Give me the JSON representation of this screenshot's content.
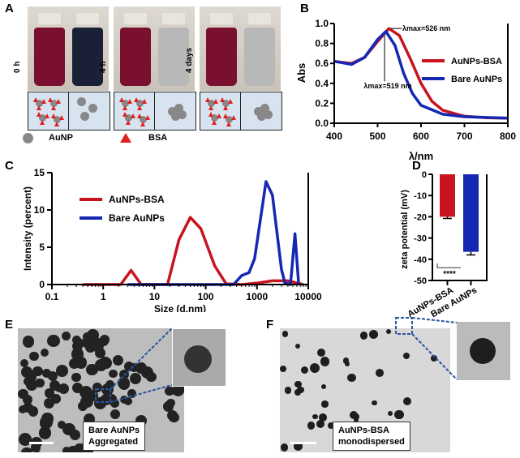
{
  "panels": {
    "a": "A",
    "b": "B",
    "c": "C",
    "d": "D",
    "e": "E",
    "f": "F"
  },
  "panel_a": {
    "times": [
      "0 h",
      "4 h",
      "4 days"
    ],
    "legend": {
      "aunp": "AuNP",
      "bsa": "BSA"
    },
    "colors": {
      "red_solution": "#7a1030",
      "blue_solution": "#1a2035",
      "grey_solution": "#b8b8b8",
      "schematic_bg": "#d7e3ef",
      "bsa": "#e02020",
      "aunp": "#888888"
    }
  },
  "panel_e": {
    "label_line1": "Bare AuNPs",
    "label_line2": "Aggregated"
  },
  "panel_f": {
    "label_line1": "AuNPs-BSA",
    "label_line2": "monodispersed"
  },
  "chart_data": [
    {
      "type": "line",
      "xlabel": "λ/nm",
      "ylabel": "Abs",
      "xlim": [
        400,
        800
      ],
      "ylim": [
        0,
        1.0
      ],
      "xticks": [
        400,
        500,
        600,
        700,
        800
      ],
      "yticks": [
        0.0,
        0.2,
        0.4,
        0.6,
        0.8,
        1.0
      ],
      "legend_position": "right",
      "annotations": [
        "λmax=526 nm",
        "λmax=519 nm"
      ],
      "series": [
        {
          "name": "AuNPs-BSA",
          "color": "#c8141e",
          "points": [
            [
              400,
              0.62
            ],
            [
              440,
              0.6
            ],
            [
              470,
              0.66
            ],
            [
              500,
              0.82
            ],
            [
              526,
              0.95
            ],
            [
              550,
              0.88
            ],
            [
              575,
              0.65
            ],
            [
              600,
              0.4
            ],
            [
              625,
              0.22
            ],
            [
              650,
              0.13
            ],
            [
              700,
              0.07
            ],
            [
              750,
              0.055
            ],
            [
              800,
              0.05
            ]
          ]
        },
        {
          "name": "Bare AuNPs",
          "color": "#1428b4",
          "points": [
            [
              400,
              0.62
            ],
            [
              440,
              0.59
            ],
            [
              470,
              0.66
            ],
            [
              500,
              0.84
            ],
            [
              519,
              0.92
            ],
            [
              540,
              0.78
            ],
            [
              560,
              0.5
            ],
            [
              580,
              0.3
            ],
            [
              600,
              0.18
            ],
            [
              650,
              0.09
            ],
            [
              700,
              0.065
            ],
            [
              800,
              0.05
            ]
          ]
        }
      ]
    },
    {
      "type": "line",
      "xlabel": "Size (d.nm)",
      "ylabel": "Intensity (percent)",
      "xscale": "log",
      "xlim": [
        0.1,
        10000
      ],
      "ylim": [
        0,
        15
      ],
      "xticks": [
        "0.1",
        "1",
        "10",
        "100",
        "1000",
        "10000"
      ],
      "yticks": [
        0,
        5,
        10,
        15
      ],
      "legend_position": "top-left",
      "series": [
        {
          "name": "AuNPs-BSA",
          "color": "#c8141e",
          "points": [
            [
              0.4,
              0
            ],
            [
              2.2,
              0
            ],
            [
              3.5,
              1.9
            ],
            [
              5.5,
              0
            ],
            [
              18,
              0
            ],
            [
              30,
              6
            ],
            [
              50,
              9
            ],
            [
              80,
              7.5
            ],
            [
              150,
              2.5
            ],
            [
              250,
              0.1
            ],
            [
              500,
              0
            ],
            [
              1000,
              0.2
            ],
            [
              2000,
              0.5
            ],
            [
              4000,
              0.5
            ],
            [
              8000,
              0
            ]
          ]
        },
        {
          "name": "Bare AuNPs",
          "color": "#1428b4",
          "points": [
            [
              3,
              0
            ],
            [
              350,
              0
            ],
            [
              500,
              1.2
            ],
            [
              700,
              1.6
            ],
            [
              900,
              3.5
            ],
            [
              1500,
              13.8
            ],
            [
              2000,
              12
            ],
            [
              3000,
              2
            ],
            [
              3500,
              0.2
            ],
            [
              4500,
              0
            ],
            [
              5500,
              6.8
            ],
            [
              6500,
              0
            ]
          ]
        }
      ]
    },
    {
      "type": "bar",
      "ylabel": "zeta potential (mV)",
      "ylim": [
        -50,
        0
      ],
      "yticks": [
        0,
        -10,
        -20,
        -30,
        -40,
        -50
      ],
      "categories": [
        "AuNPs-BSA",
        "Bare AuNPs"
      ],
      "values": [
        -20,
        -36.5
      ],
      "errors": [
        0.8,
        1.5
      ],
      "colors": [
        "#c8141e",
        "#1428b4"
      ],
      "significance": "****"
    }
  ]
}
